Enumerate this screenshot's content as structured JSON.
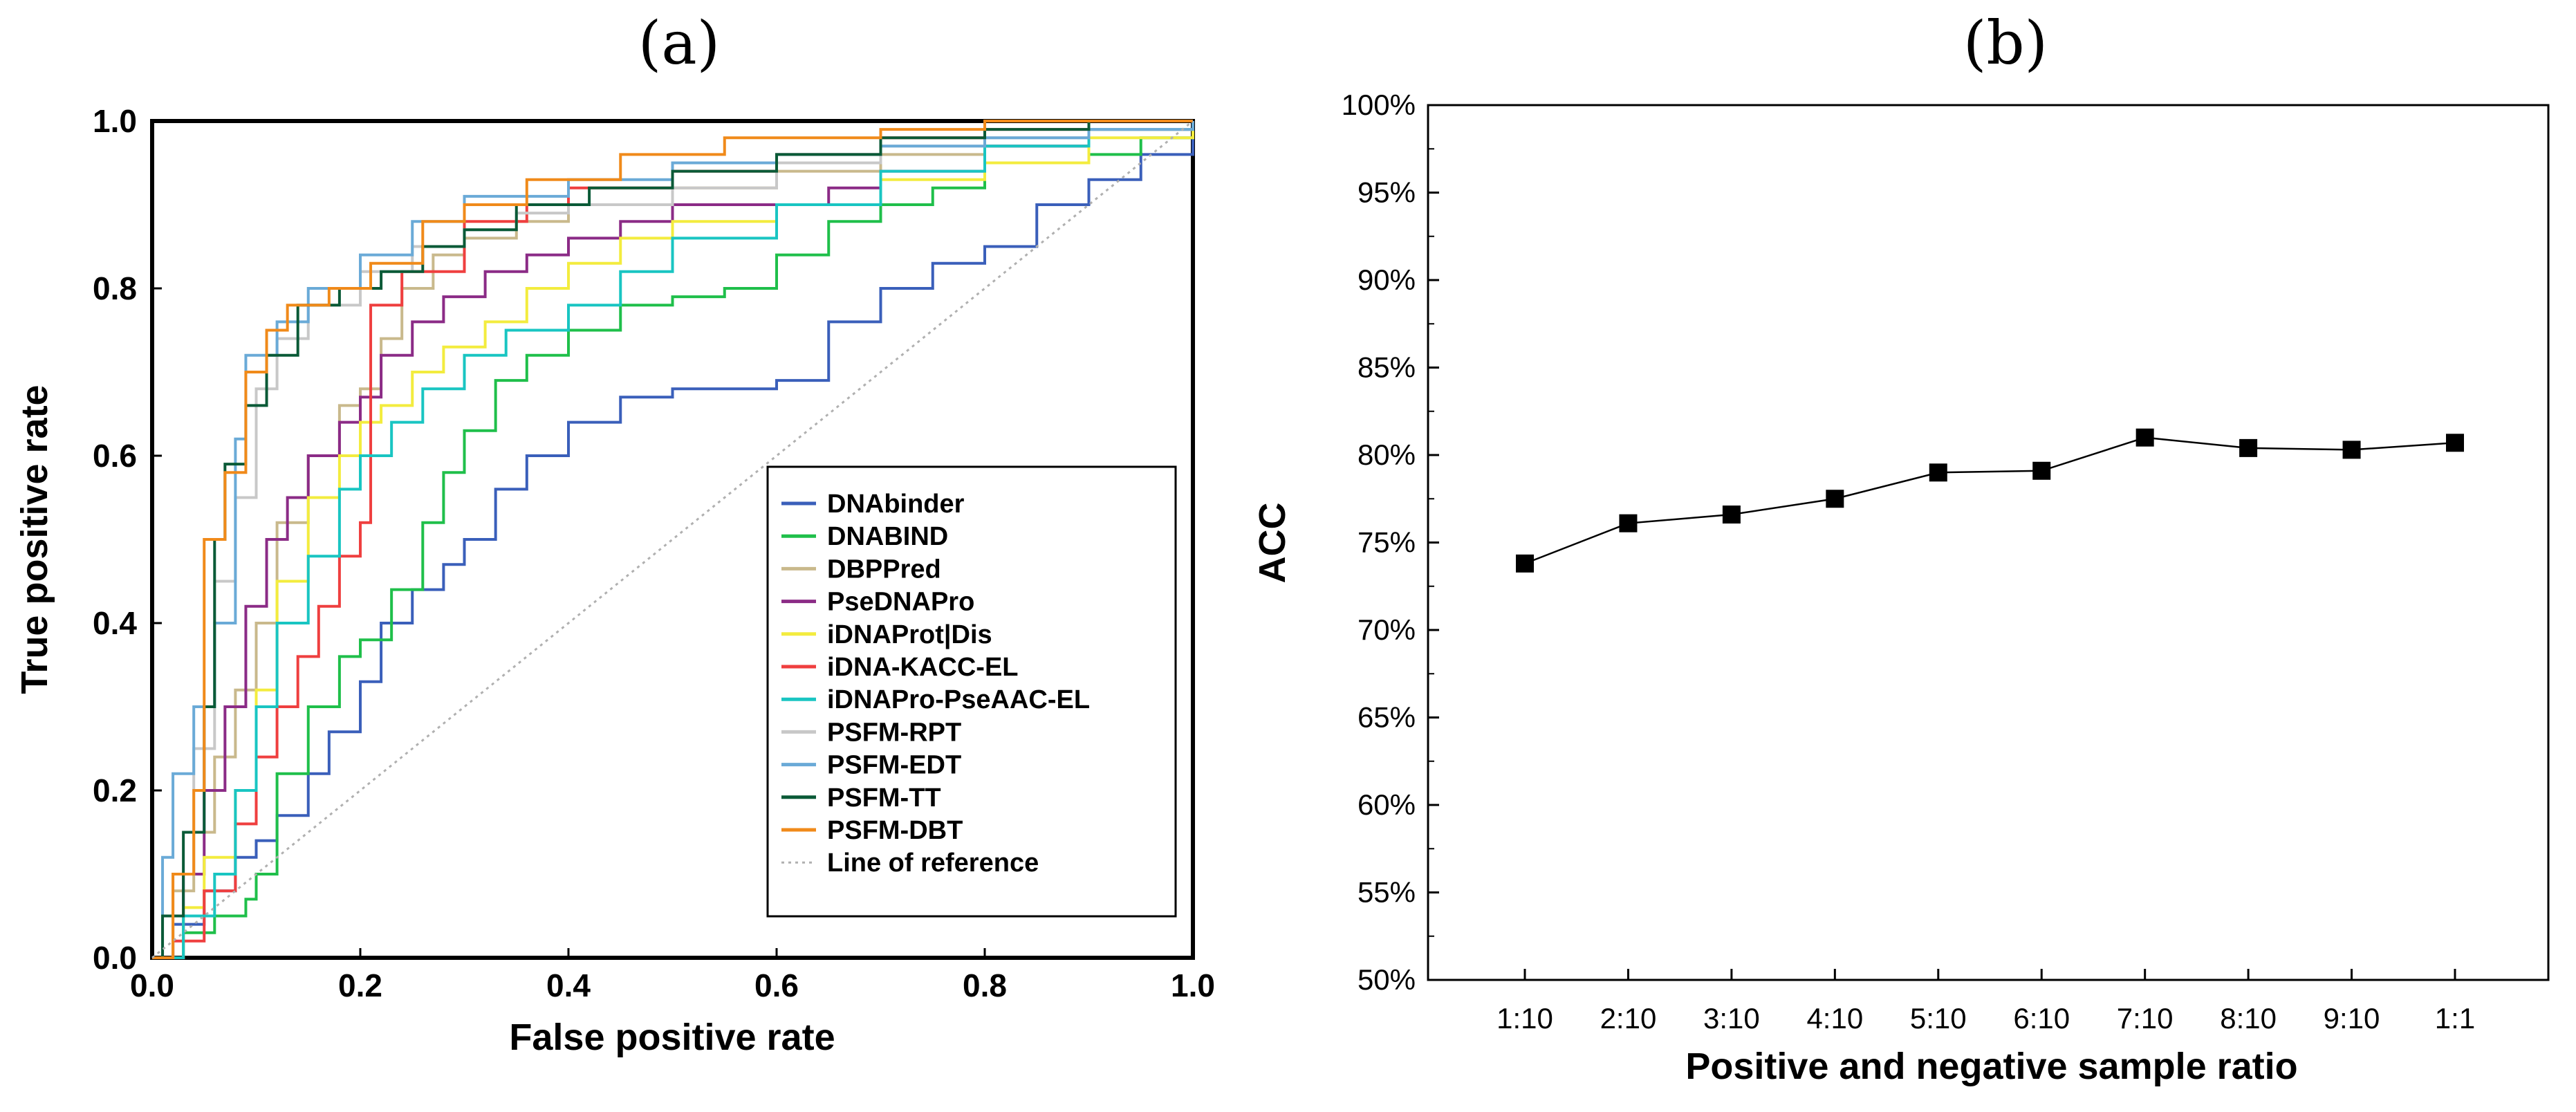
{
  "chart_data": [
    {
      "id": "a",
      "type": "line",
      "panel_label": "(a)",
      "xlabel": "False positive rate",
      "ylabel": "True positive rate",
      "xlim": [
        0,
        1
      ],
      "ylim": [
        0,
        1
      ],
      "xticks": [
        "0.0",
        "0.2",
        "0.4",
        "0.6",
        "0.8",
        "1.0"
      ],
      "yticks": [
        "0.0",
        "0.2",
        "0.4",
        "0.6",
        "0.8",
        "1.0"
      ],
      "legend_position": "bottom-right",
      "series": [
        {
          "name": "DNAbinder",
          "color": "#3a5fba",
          "style": "step",
          "points": [
            [
              0,
              0
            ],
            [
              0.02,
              0.04
            ],
            [
              0.05,
              0.08
            ],
            [
              0.08,
              0.12
            ],
            [
              0.1,
              0.14
            ],
            [
              0.12,
              0.17
            ],
            [
              0.15,
              0.22
            ],
            [
              0.17,
              0.27
            ],
            [
              0.2,
              0.33
            ],
            [
              0.22,
              0.4
            ],
            [
              0.25,
              0.44
            ],
            [
              0.28,
              0.47
            ],
            [
              0.3,
              0.5
            ],
            [
              0.33,
              0.56
            ],
            [
              0.36,
              0.6
            ],
            [
              0.4,
              0.64
            ],
            [
              0.45,
              0.67
            ],
            [
              0.5,
              0.68
            ],
            [
              0.55,
              0.68
            ],
            [
              0.6,
              0.69
            ],
            [
              0.65,
              0.76
            ],
            [
              0.7,
              0.8
            ],
            [
              0.75,
              0.83
            ],
            [
              0.8,
              0.85
            ],
            [
              0.85,
              0.9
            ],
            [
              0.9,
              0.93
            ],
            [
              0.95,
              0.96
            ],
            [
              1,
              1
            ]
          ]
        },
        {
          "name": "DNABIND",
          "color": "#1fbf4a",
          "style": "step",
          "points": [
            [
              0,
              0
            ],
            [
              0.03,
              0.03
            ],
            [
              0.06,
              0.05
            ],
            [
              0.09,
              0.07
            ],
            [
              0.1,
              0.1
            ],
            [
              0.12,
              0.22
            ],
            [
              0.15,
              0.3
            ],
            [
              0.18,
              0.36
            ],
            [
              0.2,
              0.38
            ],
            [
              0.23,
              0.44
            ],
            [
              0.26,
              0.52
            ],
            [
              0.28,
              0.58
            ],
            [
              0.3,
              0.63
            ],
            [
              0.33,
              0.69
            ],
            [
              0.36,
              0.72
            ],
            [
              0.4,
              0.75
            ],
            [
              0.45,
              0.78
            ],
            [
              0.5,
              0.79
            ],
            [
              0.55,
              0.8
            ],
            [
              0.6,
              0.84
            ],
            [
              0.65,
              0.88
            ],
            [
              0.7,
              0.9
            ],
            [
              0.75,
              0.92
            ],
            [
              0.8,
              0.95
            ],
            [
              0.9,
              0.96
            ],
            [
              0.95,
              0.98
            ],
            [
              1,
              1
            ]
          ]
        },
        {
          "name": "DBPPred",
          "color": "#c9b98c",
          "style": "step",
          "points": [
            [
              0,
              0
            ],
            [
              0.02,
              0.08
            ],
            [
              0.04,
              0.15
            ],
            [
              0.06,
              0.24
            ],
            [
              0.08,
              0.32
            ],
            [
              0.1,
              0.4
            ],
            [
              0.12,
              0.52
            ],
            [
              0.15,
              0.6
            ],
            [
              0.18,
              0.66
            ],
            [
              0.2,
              0.68
            ],
            [
              0.22,
              0.74
            ],
            [
              0.24,
              0.8
            ],
            [
              0.27,
              0.84
            ],
            [
              0.3,
              0.86
            ],
            [
              0.35,
              0.88
            ],
            [
              0.4,
              0.9
            ],
            [
              0.5,
              0.92
            ],
            [
              0.6,
              0.94
            ],
            [
              0.7,
              0.96
            ],
            [
              0.8,
              0.97
            ],
            [
              0.9,
              0.99
            ],
            [
              1,
              1
            ]
          ]
        },
        {
          "name": "PseDNAPro",
          "color": "#8b2b86",
          "style": "step",
          "points": [
            [
              0,
              0
            ],
            [
              0.03,
              0.1
            ],
            [
              0.05,
              0.2
            ],
            [
              0.07,
              0.3
            ],
            [
              0.09,
              0.42
            ],
            [
              0.11,
              0.5
            ],
            [
              0.13,
              0.55
            ],
            [
              0.15,
              0.6
            ],
            [
              0.18,
              0.64
            ],
            [
              0.2,
              0.67
            ],
            [
              0.22,
              0.72
            ],
            [
              0.25,
              0.76
            ],
            [
              0.28,
              0.79
            ],
            [
              0.32,
              0.82
            ],
            [
              0.36,
              0.84
            ],
            [
              0.4,
              0.86
            ],
            [
              0.45,
              0.88
            ],
            [
              0.5,
              0.9
            ],
            [
              0.6,
              0.9
            ],
            [
              0.65,
              0.92
            ],
            [
              0.7,
              0.94
            ],
            [
              0.8,
              0.97
            ],
            [
              0.9,
              0.99
            ],
            [
              1,
              1
            ]
          ]
        },
        {
          "name": "iDNAProt|Dis",
          "color": "#f3ec3e",
          "style": "step",
          "points": [
            [
              0,
              0
            ],
            [
              0.03,
              0.06
            ],
            [
              0.05,
              0.12
            ],
            [
              0.08,
              0.2
            ],
            [
              0.1,
              0.32
            ],
            [
              0.12,
              0.45
            ],
            [
              0.15,
              0.55
            ],
            [
              0.18,
              0.6
            ],
            [
              0.2,
              0.64
            ],
            [
              0.22,
              0.66
            ],
            [
              0.25,
              0.7
            ],
            [
              0.28,
              0.73
            ],
            [
              0.32,
              0.76
            ],
            [
              0.36,
              0.8
            ],
            [
              0.4,
              0.83
            ],
            [
              0.45,
              0.86
            ],
            [
              0.5,
              0.88
            ],
            [
              0.6,
              0.9
            ],
            [
              0.7,
              0.93
            ],
            [
              0.8,
              0.95
            ],
            [
              0.9,
              0.98
            ],
            [
              1,
              1
            ]
          ]
        },
        {
          "name": "iDNA-KACC-EL",
          "color": "#ef3f3f",
          "style": "step",
          "points": [
            [
              0,
              0
            ],
            [
              0.02,
              0.02
            ],
            [
              0.05,
              0.08
            ],
            [
              0.08,
              0.16
            ],
            [
              0.1,
              0.24
            ],
            [
              0.12,
              0.3
            ],
            [
              0.14,
              0.36
            ],
            [
              0.16,
              0.42
            ],
            [
              0.18,
              0.48
            ],
            [
              0.2,
              0.52
            ],
            [
              0.21,
              0.78
            ],
            [
              0.24,
              0.82
            ],
            [
              0.3,
              0.88
            ],
            [
              0.36,
              0.9
            ],
            [
              0.4,
              0.92
            ],
            [
              0.5,
              0.94
            ],
            [
              0.6,
              0.96
            ],
            [
              0.7,
              0.98
            ],
            [
              0.8,
              0.99
            ],
            [
              0.9,
              1
            ],
            [
              1,
              1
            ]
          ]
        },
        {
          "name": "iDNAPro-PseAAC-EL",
          "color": "#19c5c2",
          "style": "step",
          "points": [
            [
              0,
              0
            ],
            [
              0.03,
              0.05
            ],
            [
              0.06,
              0.1
            ],
            [
              0.08,
              0.2
            ],
            [
              0.1,
              0.3
            ],
            [
              0.12,
              0.4
            ],
            [
              0.15,
              0.48
            ],
            [
              0.18,
              0.56
            ],
            [
              0.2,
              0.6
            ],
            [
              0.23,
              0.64
            ],
            [
              0.26,
              0.68
            ],
            [
              0.3,
              0.72
            ],
            [
              0.34,
              0.75
            ],
            [
              0.4,
              0.78
            ],
            [
              0.45,
              0.82
            ],
            [
              0.5,
              0.86
            ],
            [
              0.6,
              0.9
            ],
            [
              0.7,
              0.94
            ],
            [
              0.8,
              0.97
            ],
            [
              0.9,
              0.99
            ],
            [
              1,
              1
            ]
          ]
        },
        {
          "name": "PSFM-RPT",
          "color": "#c8c8c8",
          "style": "step",
          "points": [
            [
              0,
              0
            ],
            [
              0.02,
              0.1
            ],
            [
              0.04,
              0.25
            ],
            [
              0.06,
              0.45
            ],
            [
              0.08,
              0.55
            ],
            [
              0.1,
              0.68
            ],
            [
              0.12,
              0.74
            ],
            [
              0.15,
              0.78
            ],
            [
              0.2,
              0.82
            ],
            [
              0.25,
              0.85
            ],
            [
              0.3,
              0.87
            ],
            [
              0.35,
              0.89
            ],
            [
              0.4,
              0.9
            ],
            [
              0.5,
              0.92
            ],
            [
              0.6,
              0.95
            ],
            [
              0.7,
              0.97
            ],
            [
              0.8,
              0.98
            ],
            [
              0.9,
              0.99
            ],
            [
              1,
              1
            ]
          ]
        },
        {
          "name": "PSFM-EDT",
          "color": "#6aaad7",
          "style": "step",
          "points": [
            [
              0,
              0
            ],
            [
              0.01,
              0.12
            ],
            [
              0.02,
              0.22
            ],
            [
              0.04,
              0.3
            ],
            [
              0.06,
              0.4
            ],
            [
              0.08,
              0.62
            ],
            [
              0.09,
              0.72
            ],
            [
              0.12,
              0.76
            ],
            [
              0.15,
              0.8
            ],
            [
              0.2,
              0.84
            ],
            [
              0.25,
              0.88
            ],
            [
              0.3,
              0.91
            ],
            [
              0.4,
              0.93
            ],
            [
              0.5,
              0.95
            ],
            [
              0.6,
              0.96
            ],
            [
              0.7,
              0.97
            ],
            [
              0.8,
              0.98
            ],
            [
              0.9,
              0.99
            ],
            [
              1,
              1
            ]
          ]
        },
        {
          "name": "PSFM-TT",
          "color": "#0a5a37",
          "style": "step",
          "points": [
            [
              0,
              0
            ],
            [
              0.01,
              0.05
            ],
            [
              0.03,
              0.15
            ],
            [
              0.05,
              0.3
            ],
            [
              0.06,
              0.5
            ],
            [
              0.07,
              0.59
            ],
            [
              0.09,
              0.66
            ],
            [
              0.11,
              0.72
            ],
            [
              0.14,
              0.78
            ],
            [
              0.18,
              0.8
            ],
            [
              0.22,
              0.82
            ],
            [
              0.26,
              0.85
            ],
            [
              0.3,
              0.87
            ],
            [
              0.35,
              0.9
            ],
            [
              0.42,
              0.92
            ],
            [
              0.5,
              0.94
            ],
            [
              0.6,
              0.96
            ],
            [
              0.7,
              0.98
            ],
            [
              0.8,
              0.99
            ],
            [
              0.9,
              1
            ],
            [
              1,
              1
            ]
          ]
        },
        {
          "name": "PSFM-DBT",
          "color": "#f08a1a",
          "style": "step",
          "points": [
            [
              0,
              0
            ],
            [
              0.02,
              0.1
            ],
            [
              0.04,
              0.2
            ],
            [
              0.05,
              0.5
            ],
            [
              0.07,
              0.58
            ],
            [
              0.09,
              0.7
            ],
            [
              0.11,
              0.75
            ],
            [
              0.13,
              0.78
            ],
            [
              0.17,
              0.8
            ],
            [
              0.21,
              0.83
            ],
            [
              0.26,
              0.88
            ],
            [
              0.3,
              0.9
            ],
            [
              0.36,
              0.93
            ],
            [
              0.45,
              0.96
            ],
            [
              0.55,
              0.98
            ],
            [
              0.7,
              0.99
            ],
            [
              0.8,
              1
            ],
            [
              1,
              1
            ]
          ]
        },
        {
          "name": "Line of reference",
          "color": "#b0b0b0",
          "style": "dotted",
          "points": [
            [
              0,
              0
            ],
            [
              1,
              1
            ]
          ]
        }
      ]
    },
    {
      "id": "b",
      "type": "line",
      "panel_label": "(b)",
      "xlabel": "Positive and negative sample ratio",
      "ylabel": "ACC",
      "ylim": [
        0.5,
        1.0
      ],
      "categories": [
        "1:10",
        "2:10",
        "3:10",
        "4:10",
        "5:10",
        "6:10",
        "7:10",
        "8:10",
        "9:10",
        "1:1"
      ],
      "values": [
        0.738,
        0.761,
        0.766,
        0.775,
        0.79,
        0.791,
        0.81,
        0.804,
        0.803,
        0.807
      ],
      "yticks": [
        "50%",
        "55%",
        "60%",
        "65%",
        "70%",
        "75%",
        "80%",
        "85%",
        "90%",
        "95%",
        "100%"
      ],
      "ytick_values": [
        0.5,
        0.55,
        0.6,
        0.65,
        0.7,
        0.75,
        0.8,
        0.85,
        0.9,
        0.95,
        1.0
      ],
      "color": "#000000",
      "marker": "square"
    }
  ]
}
